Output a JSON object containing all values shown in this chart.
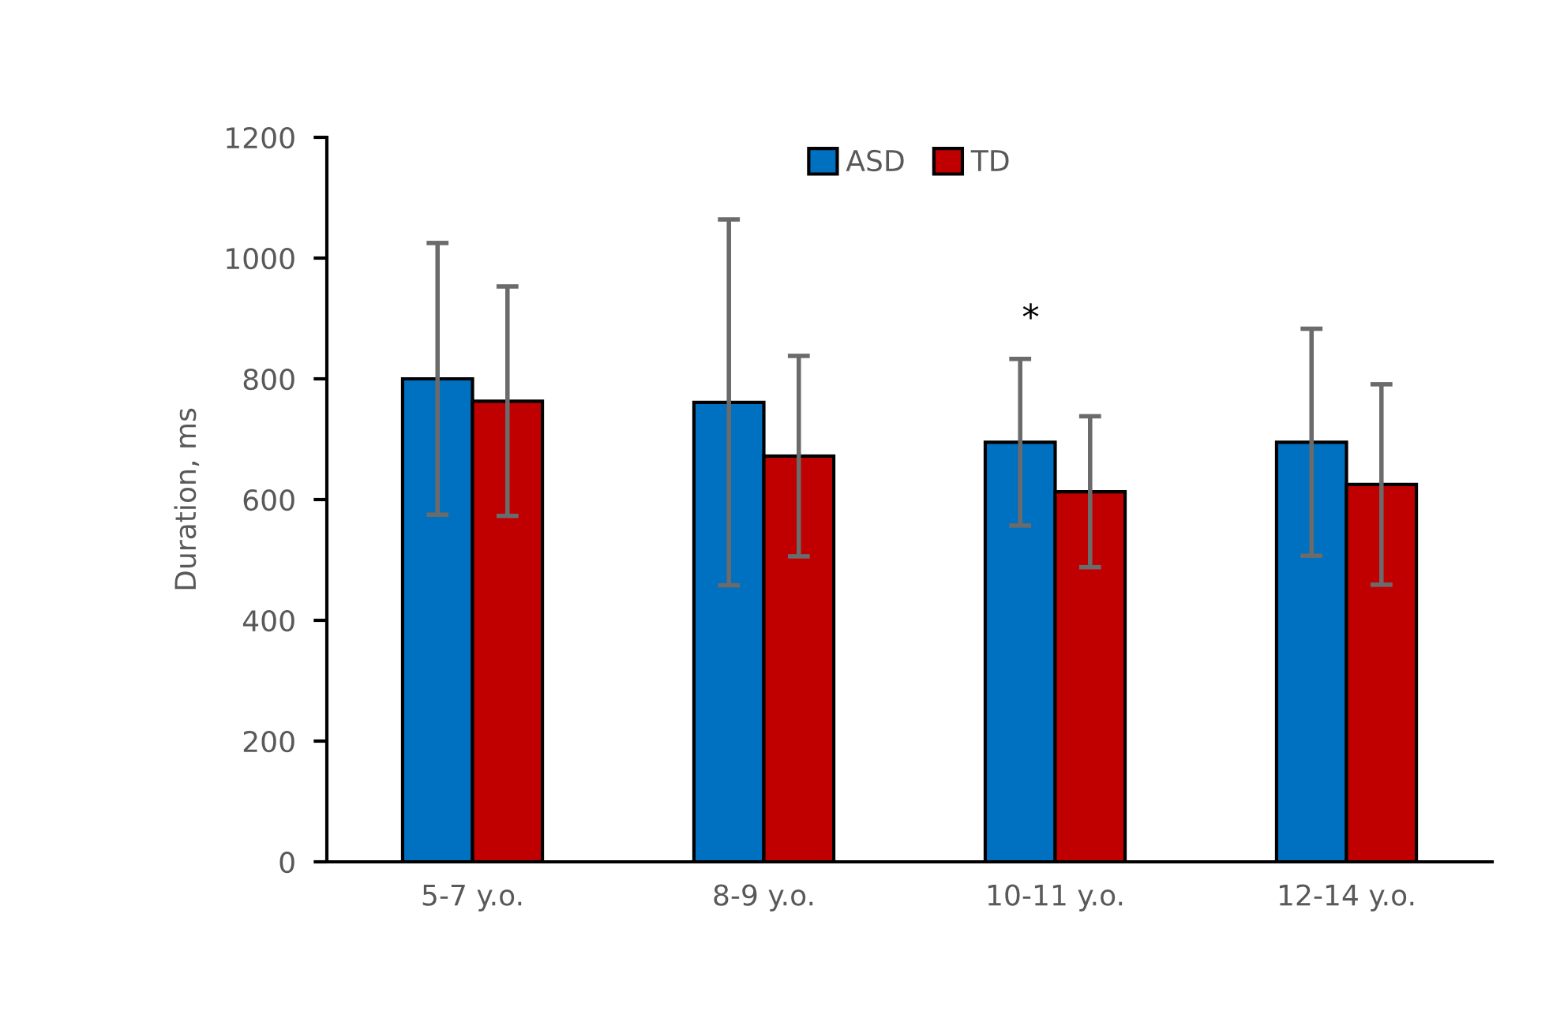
{
  "chart_data": {
    "type": "bar",
    "ylabel": "Duration, ms",
    "categories": [
      "5-7 y.o.",
      "8-9 y.o.",
      "10-11 y.o.",
      "12-14 y.o."
    ],
    "series": [
      {
        "name": "ASD",
        "color": "#0070c0",
        "values": [
          800,
          761,
          695,
          695
        ],
        "errors": [
          225,
          303,
          138,
          188
        ]
      },
      {
        "name": "TD",
        "color": "#c00000",
        "values": [
          763,
          672,
          613,
          625
        ],
        "errors": [
          190,
          166,
          125,
          166
        ]
      }
    ],
    "ylim": [
      0,
      1200
    ],
    "yticks": [
      0,
      200,
      400,
      600,
      800,
      1000,
      1200
    ],
    "grid": false,
    "legend": "top",
    "annotations": [
      "*"
    ]
  }
}
